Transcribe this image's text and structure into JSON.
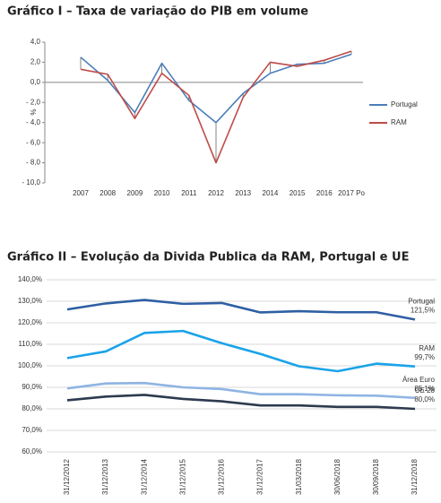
{
  "chart_data": [
    {
      "type": "line",
      "title": "Gráfico I – Taxa de variação do PIB em volume",
      "y_label": "%",
      "categories": [
        "2007",
        "2008",
        "2009",
        "2010",
        "2011",
        "2012",
        "2013",
        "2014",
        "2015",
        "2016",
        "2017 Po"
      ],
      "series": [
        {
          "name": "Portugal",
          "color": "#4a7ebb",
          "values": [
            2.5,
            0.2,
            -3.0,
            1.9,
            -1.8,
            -4.0,
            -1.1,
            0.9,
            1.8,
            1.9,
            2.8
          ]
        },
        {
          "name": "RAM",
          "color": "#be4b48",
          "values": [
            1.3,
            0.8,
            -3.6,
            0.9,
            -1.3,
            -8.0,
            -1.5,
            2.0,
            1.6,
            2.2,
            3.1
          ]
        }
      ],
      "ylim": [
        -10,
        4
      ],
      "yticks": [
        {
          "value": 4,
          "label": "4,0"
        },
        {
          "value": 2,
          "label": "2,0"
        },
        {
          "value": 0,
          "label": "0,0"
        },
        {
          "value": -2,
          "label": "- 2,0"
        },
        {
          "value": -4,
          "label": "- 4,0"
        },
        {
          "value": -6,
          "label": "- 6,0"
        },
        {
          "value": -8,
          "label": "- 8,0"
        },
        {
          "value": -10,
          "label": "- 10,0"
        }
      ],
      "grid": false,
      "drop_lines": true,
      "legend": "right"
    },
    {
      "type": "line",
      "title": "Gráfico II – Evolução da Divida Publica da RAM, Portugal e UE",
      "categories": [
        "31/12/2012",
        "31/12/2013",
        "31/12/2014",
        "31/12/2015",
        "31/12/2016",
        "31/12/2017",
        "31/03/2018",
        "30/06/2018",
        "30/09/2018",
        "31/12/2018"
      ],
      "series": [
        {
          "name": "Portugal",
          "color": "#2e5fa3",
          "values": [
            126.2,
            129.0,
            130.6,
            128.8,
            129.2,
            124.8,
            125.4,
            124.9,
            124.9,
            121.5
          ],
          "value_labels": [
            null,
            null,
            null,
            null,
            null,
            null,
            null,
            null,
            null,
            "121,5%"
          ]
        },
        {
          "name": "RAM",
          "color": "#1aa3e8",
          "values": [
            103.6,
            106.7,
            115.3,
            116.2,
            110.5,
            105.5,
            99.8,
            97.5,
            101.0,
            99.7
          ],
          "value_labels": [
            null,
            null,
            null,
            null,
            null,
            null,
            null,
            null,
            null,
            "99,7%"
          ]
        },
        {
          "name": "Área Euro",
          "color": "#8fb4e3",
          "values": [
            89.5,
            91.8,
            92.0,
            90.0,
            89.2,
            86.8,
            86.8,
            86.3,
            86.1,
            85.1
          ],
          "value_labels": [
            null,
            null,
            null,
            null,
            null,
            null,
            null,
            null,
            null,
            "85,1%"
          ]
        },
        {
          "name": "UE 28",
          "color": "#2d3a4f",
          "values": [
            84.0,
            85.7,
            86.5,
            84.6,
            83.5,
            81.6,
            81.6,
            80.9,
            80.9,
            80.0
          ],
          "value_labels": [
            null,
            null,
            null,
            null,
            null,
            null,
            null,
            null,
            null,
            "80,0%"
          ]
        }
      ],
      "ylim": [
        60,
        140
      ],
      "yticks": [
        {
          "value": 60,
          "label": "60,0%"
        },
        {
          "value": 70,
          "label": "70,0%"
        },
        {
          "value": 80,
          "label": "80,0%"
        },
        {
          "value": 90,
          "label": "90,0%"
        },
        {
          "value": 100,
          "label": "100,0%"
        },
        {
          "value": 110,
          "label": "110,0%"
        },
        {
          "value": 120,
          "label": "120,0%"
        },
        {
          "value": 130,
          "label": "130,0%"
        },
        {
          "value": 140,
          "label": "140,0%"
        }
      ],
      "grid": true
    }
  ]
}
